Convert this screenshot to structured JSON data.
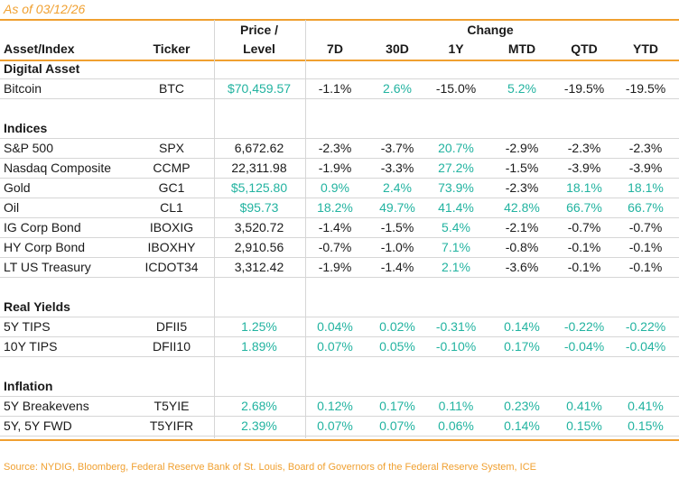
{
  "note": "As of 03/12/26",
  "header": {
    "asset": "Asset/Index",
    "ticker": "Ticker",
    "price_line1": "Price /",
    "price_line2": "Level",
    "change": "Change",
    "periods": [
      "7D",
      "30D",
      "1Y",
      "MTD",
      "QTD",
      "YTD"
    ]
  },
  "colors": {
    "accent": "#f0a030",
    "positive": "#22b3a0",
    "text": "#1a1a1a",
    "rule": "#d6d6d6"
  },
  "sections": [
    {
      "title": "Digital Asset",
      "negatives_teal": false,
      "rows": [
        {
          "name": "Bitcoin",
          "ticker": "BTC",
          "price": "$70,459.57",
          "price_teal": true,
          "changes": [
            "-1.1%",
            "2.6%",
            "-15.0%",
            "5.2%",
            "-19.5%",
            "-19.5%"
          ]
        }
      ]
    },
    {
      "title": "Indices",
      "negatives_teal": false,
      "rows": [
        {
          "name": "S&P 500",
          "ticker": "SPX",
          "price": "6,672.62",
          "price_teal": false,
          "changes": [
            "-2.3%",
            "-3.7%",
            "20.7%",
            "-2.9%",
            "-2.3%",
            "-2.3%"
          ]
        },
        {
          "name": "Nasdaq Composite",
          "ticker": "CCMP",
          "price": "22,311.98",
          "price_teal": false,
          "changes": [
            "-1.9%",
            "-3.3%",
            "27.2%",
            "-1.5%",
            "-3.9%",
            "-3.9%"
          ]
        },
        {
          "name": "Gold",
          "ticker": "GC1",
          "price": "$5,125.80",
          "price_teal": true,
          "changes": [
            "0.9%",
            "2.4%",
            "73.9%",
            "-2.3%",
            "18.1%",
            "18.1%"
          ]
        },
        {
          "name": "Oil",
          "ticker": "CL1",
          "price": "$95.73",
          "price_teal": true,
          "changes": [
            "18.2%",
            "49.7%",
            "41.4%",
            "42.8%",
            "66.7%",
            "66.7%"
          ]
        },
        {
          "name": "IG Corp Bond",
          "ticker": "IBOXIG",
          "price": "3,520.72",
          "price_teal": false,
          "changes": [
            "-1.4%",
            "-1.5%",
            "5.4%",
            "-2.1%",
            "-0.7%",
            "-0.7%"
          ]
        },
        {
          "name": "HY Corp Bond",
          "ticker": "IBOXHY",
          "price": "2,910.56",
          "price_teal": false,
          "changes": [
            "-0.7%",
            "-1.0%",
            "7.1%",
            "-0.8%",
            "-0.1%",
            "-0.1%"
          ]
        },
        {
          "name": "LT US Treasury",
          "ticker": "ICDOT34",
          "price": "3,312.42",
          "price_teal": false,
          "changes": [
            "-1.9%",
            "-1.4%",
            "2.1%",
            "-3.6%",
            "-0.1%",
            "-0.1%"
          ]
        }
      ]
    },
    {
      "title": "Real Yields",
      "negatives_teal": true,
      "rows": [
        {
          "name": "5Y TIPS",
          "ticker": "DFII5",
          "price": "1.25%",
          "price_teal": true,
          "changes": [
            "0.04%",
            "0.02%",
            "-0.31%",
            "0.14%",
            "-0.22%",
            "-0.22%"
          ]
        },
        {
          "name": "10Y TIPS",
          "ticker": "DFII10",
          "price": "1.89%",
          "price_teal": true,
          "changes": [
            "0.07%",
            "0.05%",
            "-0.10%",
            "0.17%",
            "-0.04%",
            "-0.04%"
          ]
        }
      ]
    },
    {
      "title": "Inflation",
      "negatives_teal": true,
      "rows": [
        {
          "name": "5Y Breakevens",
          "ticker": "T5YIE",
          "price": "2.68%",
          "price_teal": true,
          "changes": [
            "0.12%",
            "0.17%",
            "0.11%",
            "0.23%",
            "0.41%",
            "0.41%"
          ]
        },
        {
          "name": "5Y, 5Y FWD",
          "ticker": "T5YIFR",
          "price": "2.39%",
          "price_teal": true,
          "changes": [
            "0.07%",
            "0.07%",
            "0.06%",
            "0.14%",
            "0.15%",
            "0.15%"
          ]
        }
      ]
    }
  ],
  "source": "Source: NYDIG, Bloomberg, Federal Reserve Bank of St. Louis, Board of Governors of the Federal Reserve System, ICE"
}
